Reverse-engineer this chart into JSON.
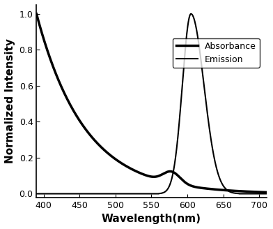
{
  "title": "",
  "xlabel": "Wavelength(nm)",
  "ylabel": "Normalized Intensity",
  "xlim": [
    390,
    710
  ],
  "ylim": [
    -0.02,
    1.05
  ],
  "xticks": [
    400,
    450,
    500,
    550,
    600,
    650,
    700
  ],
  "yticks": [
    0.0,
    0.2,
    0.4,
    0.6,
    0.8,
    1.0
  ],
  "line_color": "#000000",
  "legend_labels": [
    "Absorbance",
    "Emission"
  ],
  "absorbance_lw": 2.5,
  "emission_lw": 1.5
}
